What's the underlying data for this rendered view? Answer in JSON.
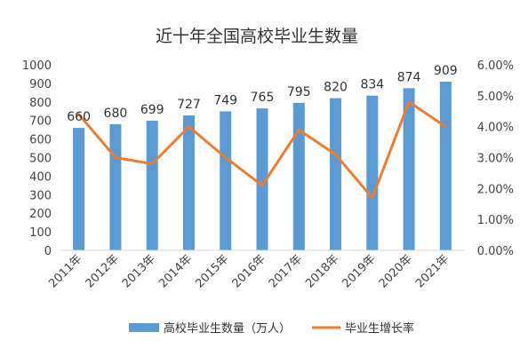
{
  "chart_data": {
    "type": "bar",
    "title": "近十年全国高校毕业生数量",
    "categories": [
      "2011年",
      "2012年",
      "2013年",
      "2014年",
      "2015年",
      "2016年",
      "2017年",
      "2018年",
      "2019年",
      "2020年",
      "2021年"
    ],
    "series": [
      {
        "name": "高校毕业生数量（万人）",
        "type": "bar",
        "axis": "left",
        "values": [
          660,
          680,
          699,
          727,
          749,
          765,
          795,
          820,
          834,
          874,
          909
        ],
        "color": "#5B9BD5"
      },
      {
        "name": "毕业生增长率",
        "type": "line",
        "axis": "right",
        "values": [
          4.4,
          3.0,
          2.8,
          4.0,
          3.0,
          2.1,
          3.9,
          3.1,
          1.7,
          4.8,
          4.0
        ],
        "color": "#ED7D31"
      }
    ],
    "y_left": {
      "min": 0,
      "max": 1000,
      "step": 100,
      "tick_labels": [
        "0",
        "100",
        "200",
        "300",
        "400",
        "500",
        "600",
        "700",
        "800",
        "900",
        "1000"
      ]
    },
    "y_right": {
      "min": 0,
      "max": 6,
      "step": 1,
      "tick_labels": [
        "0.00%",
        "1.00%",
        "2.00%",
        "3.00%",
        "4.00%",
        "5.00%",
        "6.00%"
      ]
    },
    "data_labels": [
      "660",
      "680",
      "699",
      "727",
      "749",
      "765",
      "795",
      "820",
      "834",
      "874",
      "909"
    ],
    "grid": false,
    "legend_position": "bottom"
  }
}
